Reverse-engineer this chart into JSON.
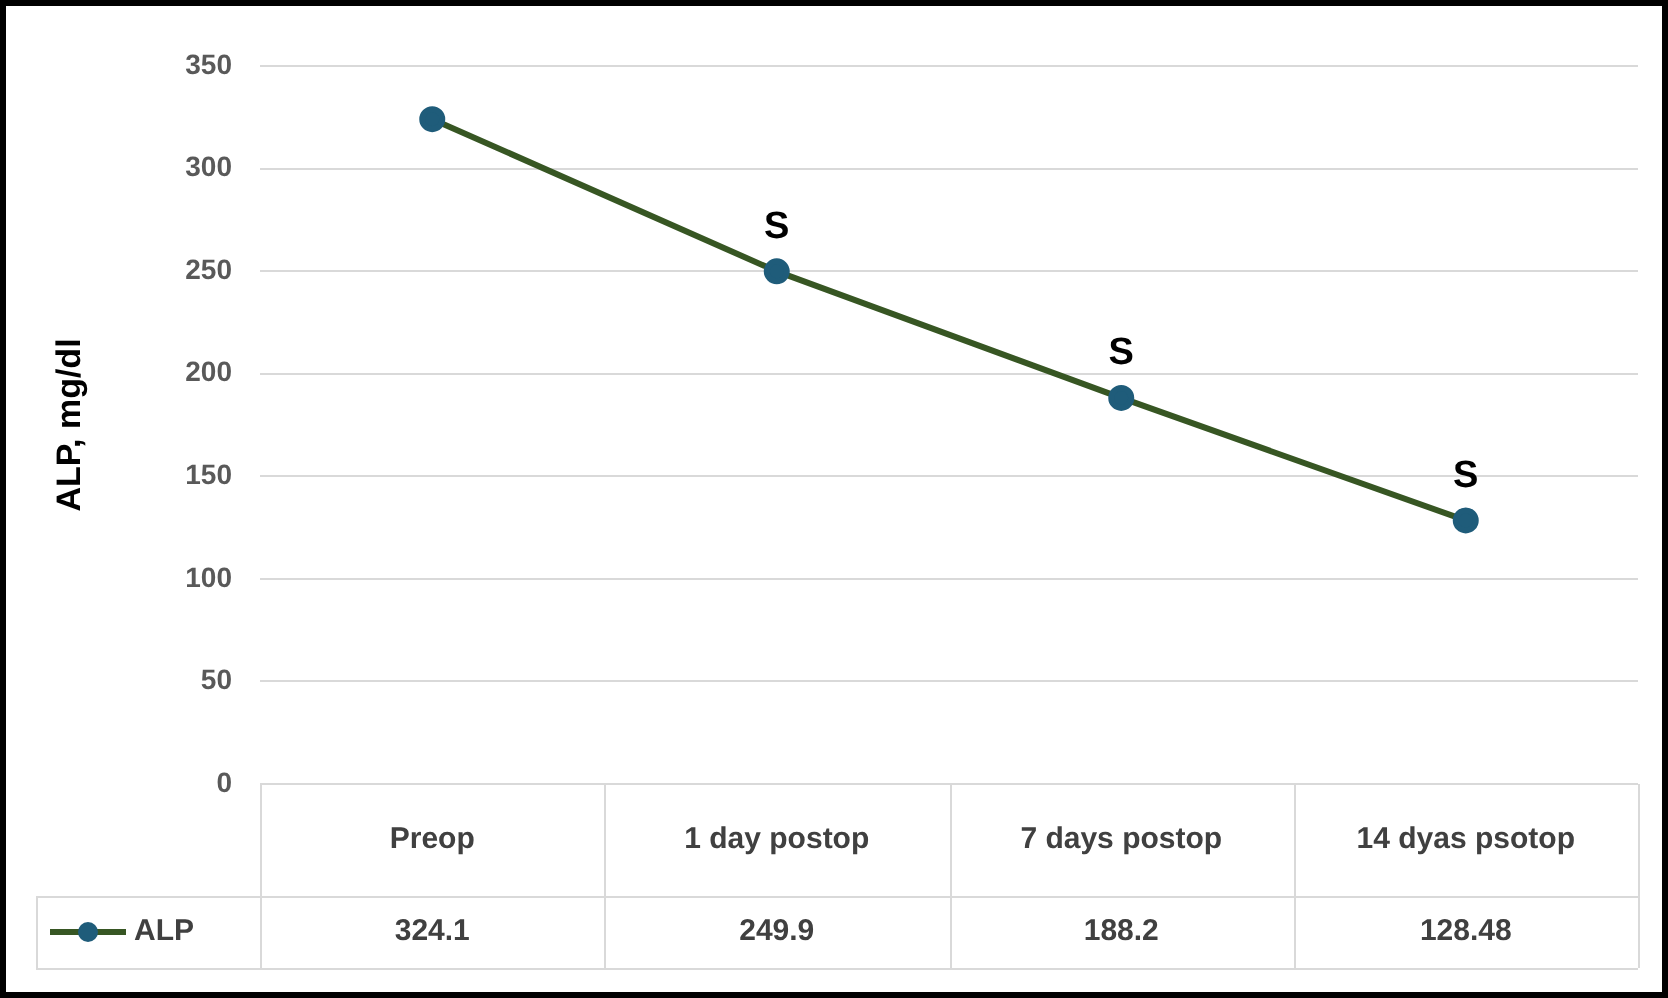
{
  "chart_data": {
    "type": "line",
    "ylabel": "ALP, mg/dl",
    "categories": [
      "Preop",
      "1 day postop",
      "7 days postop",
      "14 dyas psotop"
    ],
    "series": [
      {
        "name": "ALP",
        "color": "#375623",
        "values": [
          324.1,
          249.9,
          188.2,
          128.48
        ]
      }
    ],
    "ylim": [
      0,
      350
    ],
    "yticks": [
      0,
      50,
      100,
      150,
      200,
      250,
      300,
      350
    ],
    "grid": "y",
    "marker": "circle",
    "line_style": "solid",
    "data_labels": true,
    "legend": "bottom",
    "annotations": [
      {
        "text": "S",
        "x": "1 day postop",
        "y": 249.9
      },
      {
        "text": "S",
        "x": "7 days postop",
        "y": 188.2
      },
      {
        "text": "S",
        "x": "14 dyas psotop",
        "y": 128.48
      }
    ]
  }
}
